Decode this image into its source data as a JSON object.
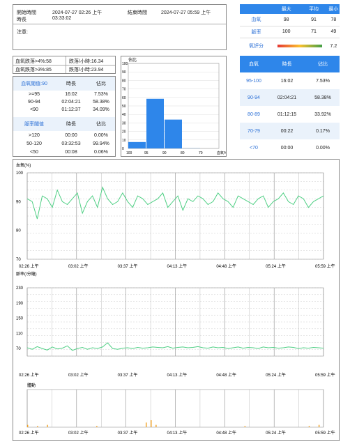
{
  "header": {
    "start_label": "開始時間",
    "start_value": "2024-07-27 02:26 上午",
    "end_label": "結束時間",
    "end_value": "2024-07-27 05:59 上午",
    "duration_label": "時長",
    "duration_value": "03:33:02",
    "notes_label": "注意:"
  },
  "summary": {
    "columns": [
      "最大",
      "平均",
      "最小"
    ],
    "rows": [
      {
        "label": "血氧",
        "values": [
          "98",
          "91",
          "78"
        ]
      },
      {
        "label": "脈率",
        "values": [
          "100",
          "71",
          "49"
        ]
      }
    ],
    "score_label": "氧評分",
    "score_value": "7.2",
    "score_fraction": 0.72
  },
  "drops": {
    "r1_left": "血氧跌落>4%:58",
    "r1_right": "跌落/小時:16.34",
    "r2_left": "血氧跌落>3%:85",
    "r2_right": "跌落/小時:23.94"
  },
  "spo2_threshold": {
    "title": "血氧閾值:90",
    "columns": [
      "時長",
      "佔比"
    ],
    "rows": [
      {
        "label": ">=95",
        "duration": "16:02",
        "pct": "7.53%"
      },
      {
        "label": "90-94",
        "duration": "02:04:21",
        "pct": "58.38%"
      },
      {
        "label": "<90",
        "duration": "01:12:37",
        "pct": "34.09%"
      }
    ]
  },
  "pr_threshold": {
    "title": "脈率閾值",
    "columns": [
      "時長",
      "佔比"
    ],
    "rows": [
      {
        "label": ">120",
        "duration": "00:00",
        "pct": "0.00%"
      },
      {
        "label": "50-120",
        "duration": "03:32:53",
        "pct": "99.94%"
      },
      {
        "label": "<50",
        "duration": "00:08",
        "pct": "0.06%"
      }
    ]
  },
  "right_table": {
    "columns": [
      "血氧",
      "時長",
      "佔比"
    ],
    "rows": [
      {
        "label": "95-100",
        "duration": "16:02",
        "pct": "7.53%"
      },
      {
        "label": "90-94",
        "duration": "02:04:21",
        "pct": "58.38%"
      },
      {
        "label": "80-89",
        "duration": "01:12:15",
        "pct": "33.92%"
      },
      {
        "label": "70-79",
        "duration": "00:22",
        "pct": "0.17%"
      },
      {
        "label": "<70",
        "duration": "00:00",
        "pct": "0.00%"
      }
    ]
  },
  "colors": {
    "accent": "#2e86ea",
    "line": "#4fcf84",
    "motion": "#f0a020"
  },
  "chart_data": [
    {
      "type": "bar",
      "title": "佔比",
      "categories": [
        "100-95",
        "95-90",
        "90-80",
        "80-70"
      ],
      "x_ticks": [
        "100",
        "95",
        "90",
        "80",
        "70",
        "血氧%"
      ],
      "values": [
        7.53,
        58.38,
        33.92,
        0.17
      ],
      "ylim": [
        0,
        100
      ],
      "y_ticks": [
        "0",
        "10",
        "20",
        "30",
        "40",
        "50",
        "60",
        "70",
        "80",
        "90",
        "100"
      ]
    },
    {
      "type": "line",
      "title": "血氧(%)",
      "ylim": [
        70,
        100
      ],
      "y_ticks": [
        "70",
        "80",
        "90",
        "100"
      ],
      "x_ticks": [
        "02:26 上午",
        "03:02 上午",
        "03:37 上午",
        "04:13 上午",
        "04:48 上午",
        "05:24 上午",
        "05:59 上午"
      ],
      "series": [
        {
          "values": [
            91,
            90,
            84,
            92,
            91,
            88,
            94,
            90,
            89,
            91,
            93,
            86,
            90,
            92,
            88,
            95,
            91,
            89,
            90,
            93,
            90,
            88,
            92,
            91,
            89,
            90,
            91,
            93,
            88,
            90,
            92,
            87,
            91,
            90,
            92,
            91,
            89,
            90,
            93,
            91,
            90,
            88,
            92,
            91,
            90,
            89,
            91,
            92,
            88,
            90,
            91,
            93,
            90,
            89,
            92,
            91,
            88,
            90,
            91,
            92
          ]
        }
      ]
    },
    {
      "type": "line",
      "title": "脈率(/分鐘)",
      "ylim": [
        50,
        230
      ],
      "y_ticks": [
        "70",
        "110",
        "150",
        "190",
        "230"
      ],
      "x_ticks": [
        "02:26 上午",
        "03:02 上午",
        "03:37 上午",
        "04:13 上午",
        "04:48 上午",
        "05:24 上午",
        "05:59 上午"
      ],
      "series": [
        {
          "values": [
            72,
            68,
            75,
            70,
            66,
            74,
            69,
            71,
            77,
            65,
            70,
            73,
            68,
            72,
            70,
            74,
            85,
            70,
            68,
            71,
            72,
            70,
            73,
            71,
            72,
            74,
            73,
            72,
            75,
            71,
            73,
            74,
            72,
            73,
            75,
            72,
            71,
            74,
            72,
            73,
            70,
            72,
            74,
            71,
            73,
            72,
            70,
            74,
            72,
            73,
            71,
            72,
            74,
            73,
            70,
            72,
            71,
            73,
            72,
            71
          ]
        }
      ]
    },
    {
      "type": "bar",
      "title": "體動",
      "x_ticks": [
        "02:26 上午",
        "03:02 上午",
        "03:37 上午",
        "04:13 上午",
        "04:48 上午",
        "05:24 上午",
        "05:59 上午"
      ],
      "values": [
        1,
        0,
        0.5,
        0,
        1,
        0,
        0,
        0,
        0,
        0,
        0,
        0,
        0,
        0,
        0.5,
        0,
        0,
        0,
        0,
        0,
        0,
        0,
        0,
        0,
        2,
        3,
        1,
        0,
        0,
        0,
        0,
        0,
        0,
        0,
        0,
        0,
        0,
        0,
        0,
        0,
        0,
        0,
        0,
        0,
        0.5,
        0,
        0,
        0,
        0,
        0,
        0,
        0,
        0,
        0,
        0,
        0,
        0,
        0.5,
        0,
        1
      ]
    }
  ]
}
